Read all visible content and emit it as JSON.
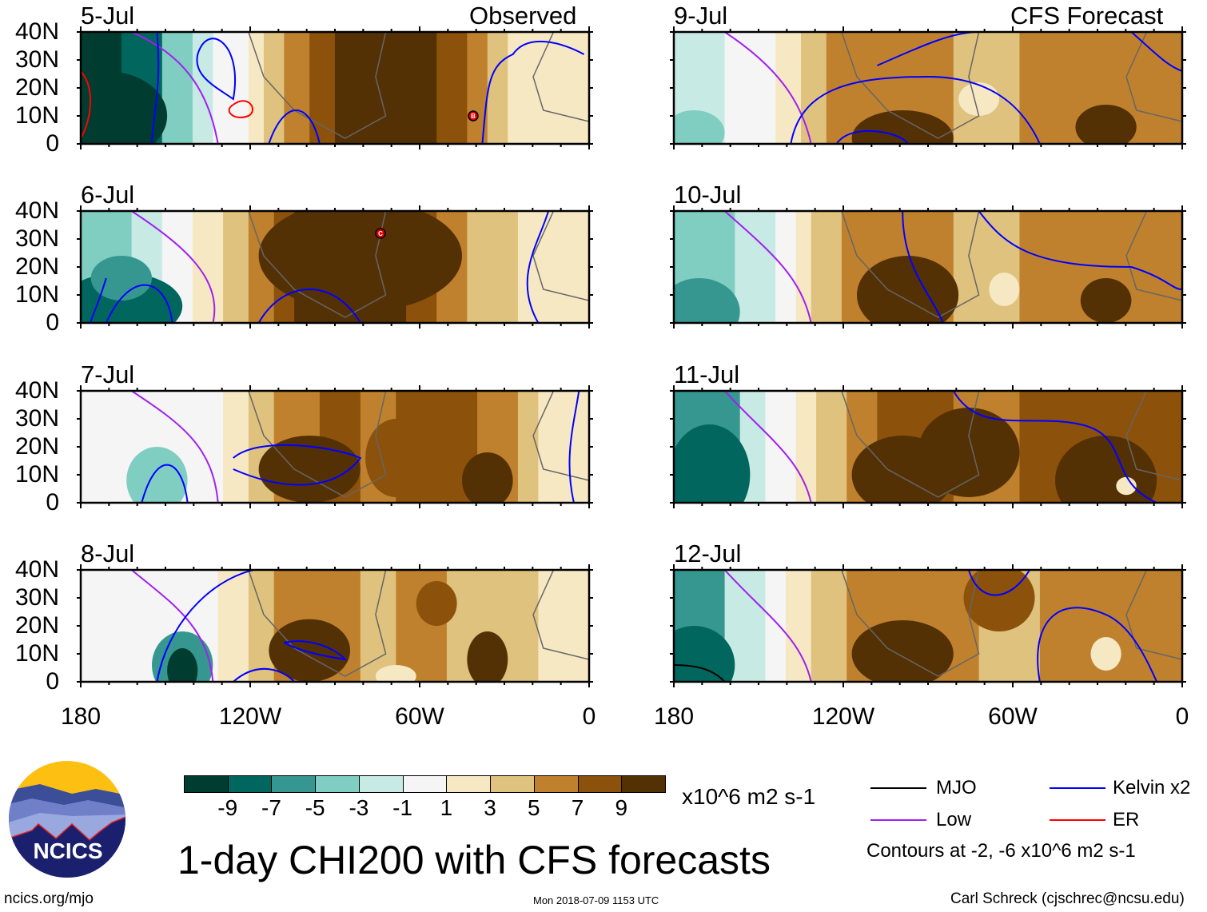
{
  "headers": {
    "left": "Observed",
    "right": "CFS Forecast"
  },
  "panels": [
    {
      "date": "5-Jul",
      "storm_marker": "B"
    },
    {
      "date": "6-Jul",
      "storm_marker": "C"
    },
    {
      "date": "7-Jul"
    },
    {
      "date": "8-Jul"
    },
    {
      "date": "9-Jul"
    },
    {
      "date": "10-Jul"
    },
    {
      "date": "11-Jul"
    },
    {
      "date": "12-Jul"
    }
  ],
  "lat_labels": [
    "40N",
    "30N",
    "20N",
    "10N",
    "0"
  ],
  "lon_labels": [
    "180",
    "120W",
    "60W",
    "0"
  ],
  "colorbar": {
    "colors": [
      "#003c30",
      "#01665e",
      "#35978f",
      "#80cdc1",
      "#c7eae5",
      "#f5f5f5",
      "#f6e8c3",
      "#dfc27d",
      "#bf812d",
      "#8c510a",
      "#543005"
    ],
    "labels": [
      "-9",
      "-7",
      "-5",
      "-3",
      "-1",
      "1",
      "3",
      "5",
      "7",
      "9"
    ],
    "units": "x10^6 m2 s-1"
  },
  "legend": {
    "items": [
      {
        "label": "MJO",
        "color": "#000000"
      },
      {
        "label": "Kelvin x2",
        "color": "#0000ff"
      },
      {
        "label": "Low",
        "color": "#a020f0"
      },
      {
        "label": "ER",
        "color": "#ff0000"
      }
    ],
    "contours_note": "Contours at -2, -6 x10^6 m2 s-1"
  },
  "title": "1-day CHI200 with CFS forecasts",
  "logo": {
    "text": "NCICS"
  },
  "footer": {
    "url": "ncics.org/mjo",
    "timestamp": "Mon 2018-07-09 1153 UTC",
    "credit": "Carl Schreck (cjschrec@ncsu.edu)"
  }
}
